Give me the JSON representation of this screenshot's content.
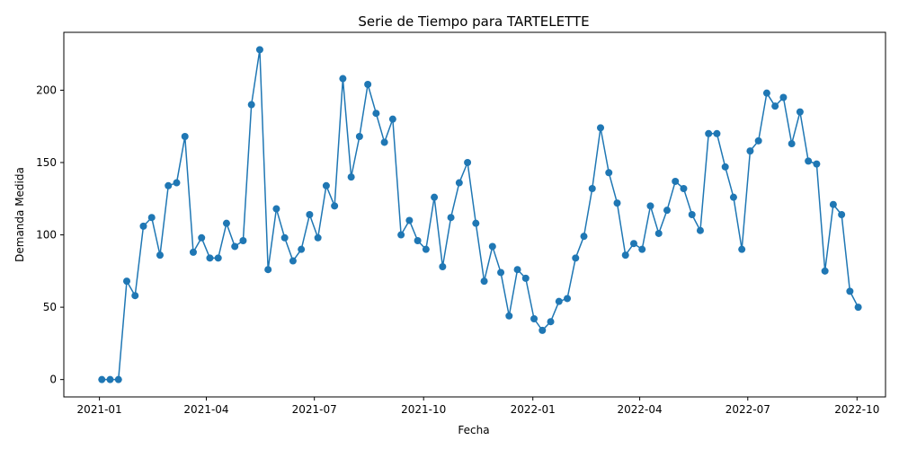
{
  "chart_data": {
    "type": "line",
    "title": "Serie de Tiempo para TARTELETTE",
    "xlabel": "Fecha",
    "ylabel": "Demanda Medida",
    "xlim": [
      "2020-12-02",
      "2022-10-25"
    ],
    "ylim": [
      -12,
      240
    ],
    "xticks": [
      {
        "label": "2021-01",
        "date": "2021-01-01"
      },
      {
        "label": "2021-04",
        "date": "2021-04-01"
      },
      {
        "label": "2021-07",
        "date": "2021-07-01"
      },
      {
        "label": "2021-10",
        "date": "2021-10-01"
      },
      {
        "label": "2022-01",
        "date": "2022-01-01"
      },
      {
        "label": "2022-04",
        "date": "2022-04-01"
      },
      {
        "label": "2022-07",
        "date": "2022-07-01"
      },
      {
        "label": "2022-10",
        "date": "2022-10-01"
      }
    ],
    "yticks": [
      0,
      50,
      100,
      150,
      200
    ],
    "grid": false,
    "legend": "none",
    "series": [
      {
        "color": "#1f77b4",
        "marker": "circle",
        "x": [
          "2021-01-03",
          "2021-01-10",
          "2021-01-17",
          "2021-01-24",
          "2021-01-31",
          "2021-02-07",
          "2021-02-14",
          "2021-02-21",
          "2021-02-28",
          "2021-03-07",
          "2021-03-14",
          "2021-03-21",
          "2021-03-28",
          "2021-04-04",
          "2021-04-11",
          "2021-04-18",
          "2021-04-25",
          "2021-05-02",
          "2021-05-09",
          "2021-05-16",
          "2021-05-23",
          "2021-05-30",
          "2021-06-06",
          "2021-06-13",
          "2021-06-20",
          "2021-06-27",
          "2021-07-04",
          "2021-07-11",
          "2021-07-18",
          "2021-07-25",
          "2021-08-01",
          "2021-08-08",
          "2021-08-15",
          "2021-08-22",
          "2021-08-29",
          "2021-09-05",
          "2021-09-12",
          "2021-09-19",
          "2021-09-26",
          "2021-10-03",
          "2021-10-10",
          "2021-10-17",
          "2021-10-24",
          "2021-10-31",
          "2021-11-07",
          "2021-11-14",
          "2021-11-21",
          "2021-11-28",
          "2021-12-05",
          "2021-12-12",
          "2021-12-19",
          "2021-12-26",
          "2022-01-02",
          "2022-01-09",
          "2022-01-16",
          "2022-01-23",
          "2022-01-30",
          "2022-02-06",
          "2022-02-13",
          "2022-02-20",
          "2022-02-27",
          "2022-03-06",
          "2022-03-13",
          "2022-03-20",
          "2022-03-27",
          "2022-04-03",
          "2022-04-10",
          "2022-04-17",
          "2022-04-24",
          "2022-05-01",
          "2022-05-08",
          "2022-05-15",
          "2022-05-22",
          "2022-05-29",
          "2022-06-05",
          "2022-06-12",
          "2022-06-19",
          "2022-06-26",
          "2022-07-03",
          "2022-07-10",
          "2022-07-17",
          "2022-07-24",
          "2022-07-31",
          "2022-08-07",
          "2022-08-14",
          "2022-08-21",
          "2022-08-28",
          "2022-09-04",
          "2022-09-11",
          "2022-09-18",
          "2022-09-25",
          "2022-10-02"
        ],
        "y": [
          0,
          0,
          0,
          68,
          58,
          106,
          112,
          86,
          134,
          136,
          168,
          88,
          98,
          84,
          84,
          108,
          92,
          96,
          190,
          228,
          76,
          118,
          98,
          82,
          90,
          114,
          98,
          134,
          120,
          208,
          140,
          168,
          204,
          184,
          164,
          180,
          100,
          110,
          96,
          90,
          126,
          78,
          112,
          136,
          150,
          108,
          68,
          92,
          74,
          44,
          76,
          70,
          42,
          34,
          40,
          54,
          56,
          84,
          99,
          132,
          174,
          143,
          122,
          86,
          94,
          90,
          120,
          101,
          117,
          137,
          132,
          114,
          103,
          170,
          170,
          147,
          126,
          90,
          158,
          165,
          198,
          189,
          195,
          163,
          185,
          151,
          149,
          75,
          121,
          114,
          61,
          50
        ]
      }
    ]
  }
}
